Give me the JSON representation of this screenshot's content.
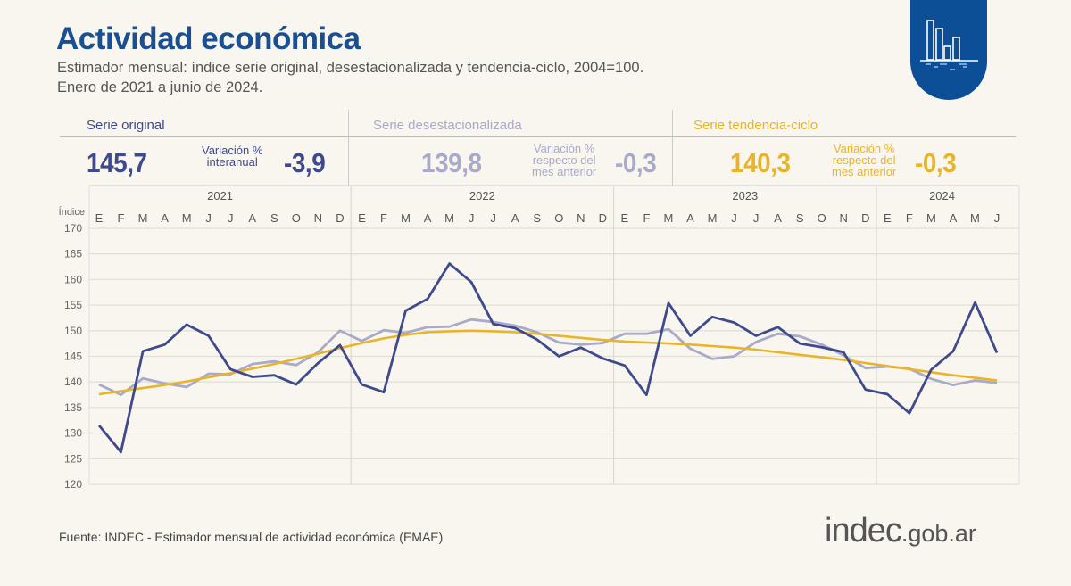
{
  "header": {
    "title": "Actividad económica",
    "subtitle_line1": "Estimador mensual: índice serie original, desestacionalizada y tendencia-ciclo, 2004=100.",
    "subtitle_line2": "Enero de 2021 a junio de 2024."
  },
  "badge_icon": "bar-chart-icon",
  "stats": [
    {
      "label": "Serie original",
      "value": "145,7",
      "var_label": [
        "Variación %",
        "interanual"
      ],
      "var_value": "-3,9",
      "color": "#3f4a8c"
    },
    {
      "label": "Serie desestacionalizada",
      "value": "139,8",
      "var_label": [
        "Variación %",
        "respecto del",
        "mes anterior"
      ],
      "var_value": "-0,3",
      "color": "#a9aac9"
    },
    {
      "label": "Serie tendencia-ciclo",
      "value": "140,3",
      "var_label": [
        "Variación %",
        "respecto del",
        "mes anterior"
      ],
      "var_value": "-0,3",
      "color": "#e8b52a"
    }
  ],
  "footer": {
    "source": "Fuente: INDEC - Estimador mensual de actividad económica (EMAE)",
    "logo_main": "indec",
    "logo_suffix": ".gob.ar"
  },
  "chart_data": {
    "type": "line",
    "ylabel": "Índice",
    "ylim": [
      120,
      170
    ],
    "yticks": [
      120,
      125,
      130,
      135,
      140,
      145,
      150,
      155,
      160,
      165,
      170
    ],
    "grid": true,
    "years": [
      "2021",
      "2022",
      "2023",
      "2024"
    ],
    "months": [
      "E",
      "F",
      "M",
      "A",
      "M",
      "J",
      "J",
      "A",
      "S",
      "O",
      "N",
      "D",
      "E",
      "F",
      "M",
      "A",
      "M",
      "J",
      "J",
      "A",
      "S",
      "O",
      "N",
      "D",
      "E",
      "F",
      "M",
      "A",
      "M",
      "J",
      "J",
      "A",
      "S",
      "O",
      "N",
      "D",
      "E",
      "F",
      "M",
      "A",
      "M",
      "J"
    ],
    "series": [
      {
        "name": "Serie original",
        "color": "#3f4a8c",
        "values": [
          131.5,
          126.3,
          146,
          147.3,
          151.2,
          149,
          142.5,
          141,
          141.3,
          139.5,
          143.7,
          147.2,
          139.5,
          138,
          153.9,
          156.2,
          163.1,
          159.5,
          151.3,
          150.5,
          148.3,
          145,
          146.7,
          144.6,
          143.2,
          137.5,
          155.4,
          149,
          152.7,
          151.6,
          149,
          150.7,
          147.5,
          146.8,
          145.8,
          138.5,
          137.6,
          133.9,
          142.4,
          146,
          155.5,
          145.7
        ]
      },
      {
        "name": "Serie desestacionalizada",
        "color": "#a9aac9",
        "values": [
          139.5,
          137.5,
          140.7,
          139.7,
          139,
          141.6,
          141.5,
          143.5,
          144,
          143.3,
          145.8,
          150,
          148,
          150.1,
          149.6,
          150.7,
          150.8,
          152.2,
          151.7,
          151,
          149.7,
          147.7,
          147.3,
          147.6,
          149.4,
          149.4,
          150.3,
          146.5,
          144.5,
          145,
          147.8,
          149.4,
          148.9,
          147.3,
          145.2,
          142.7,
          143,
          142.6,
          140.6,
          139.4,
          140.3,
          139.8
        ]
      },
      {
        "name": "Serie tendencia-ciclo",
        "color": "#e8b52a",
        "values": [
          137.6,
          138.2,
          138.8,
          139.4,
          140.1,
          140.9,
          141.7,
          142.6,
          143.5,
          144.5,
          145.5,
          146.6,
          147.6,
          148.5,
          149.2,
          149.7,
          149.9,
          150,
          149.9,
          149.7,
          149.4,
          149,
          148.6,
          148.2,
          147.9,
          147.7,
          147.5,
          147.3,
          147,
          146.7,
          146.3,
          145.8,
          145.3,
          144.8,
          144.3,
          143.7,
          143.1,
          142.5,
          141.9,
          141.3,
          140.8,
          140.3
        ]
      }
    ]
  }
}
